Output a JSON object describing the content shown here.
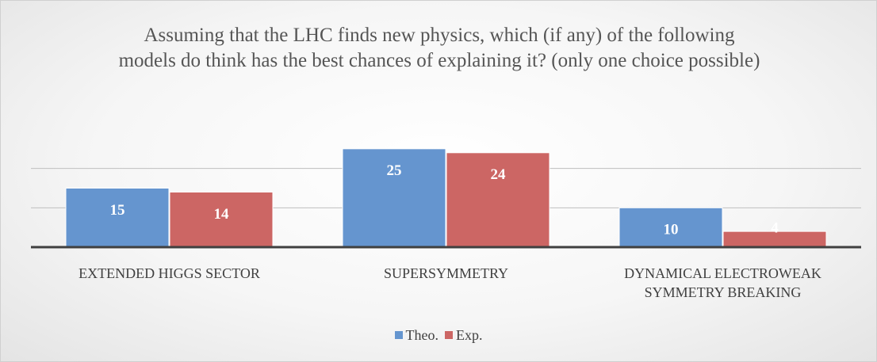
{
  "chart_data": {
    "type": "bar",
    "title": "Assuming that the LHC finds new physics, which (if any) of the following models do think has the best chances of explaining it? (only one choice possible)",
    "categories": [
      "EXTENDED HIGGS SECTOR",
      "SUPERSYMMETRY",
      "DYNAMICAL ELECTROWEAK SYMMETRY BREAKING"
    ],
    "series": [
      {
        "name": "Theo.",
        "color": "#6595cf",
        "values": [
          15,
          25,
          10
        ]
      },
      {
        "name": "Exp.",
        "color": "#cc6664",
        "values": [
          14,
          24,
          4
        ]
      }
    ],
    "ylim": [
      0,
      30
    ],
    "yticks": [
      0,
      10,
      20
    ],
    "grid": true,
    "legend": "bottom"
  }
}
